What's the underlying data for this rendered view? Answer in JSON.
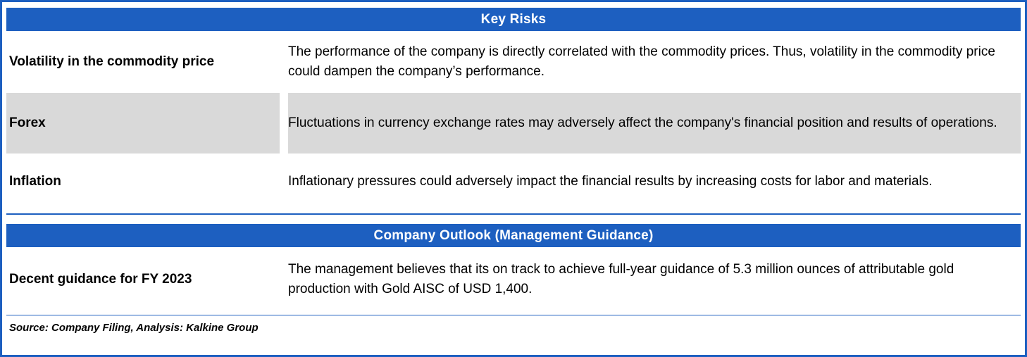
{
  "colors": {
    "header_bg": "#1d5fc0",
    "alt_row_bg": "#d9d9d9",
    "border": "#1d5fc0",
    "header_text": "#ffffff"
  },
  "key_risks": {
    "header": "Key Risks",
    "rows": [
      {
        "title": "Volatility in the commodity price",
        "desc": "The performance of the company is directly correlated with the commodity prices. Thus, volatility in the commodity price could dampen the company’s performance."
      },
      {
        "title": "Forex",
        "desc": "Fluctuations in currency exchange rates may adversely affect the company's financial position and results of operations."
      },
      {
        "title": "Inflation",
        "desc": "Inflationary pressures could adversely impact the financial results by increasing costs for labor and materials."
      }
    ]
  },
  "outlook": {
    "header": "Company Outlook (Management Guidance)",
    "rows": [
      {
        "title": "Decent guidance for FY 2023",
        "desc": "The management believes that its on track to achieve full-year guidance of 5.3 million ounces of attributable gold production with Gold AISC of USD 1,400."
      }
    ]
  },
  "footer": {
    "source": "Source: Company Filing, Analysis: Kalkine Group"
  }
}
